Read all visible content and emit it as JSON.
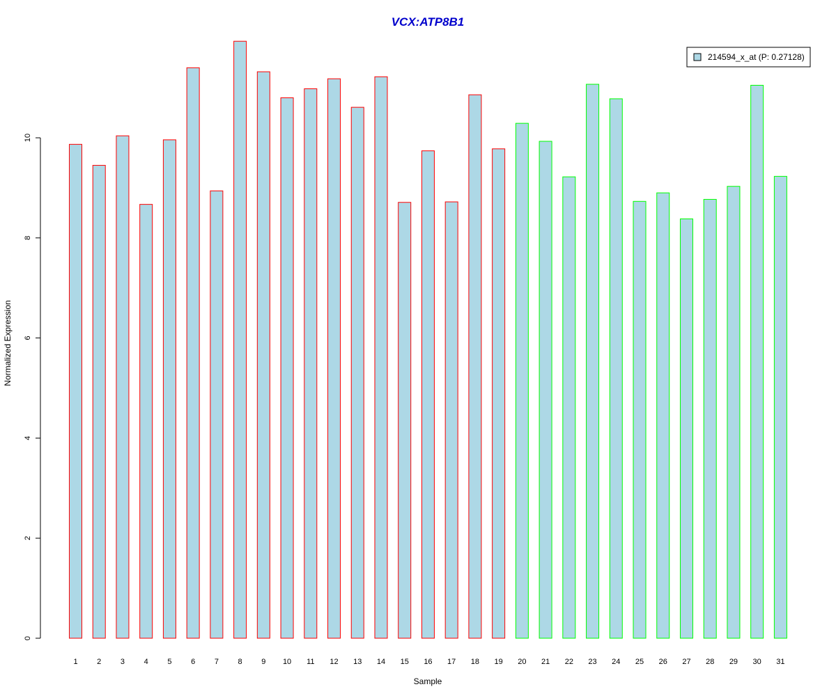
{
  "chart_data": {
    "type": "bar",
    "title": "VCX:ATP8B1",
    "xlabel": "Sample",
    "ylabel": "Normalized Expression",
    "ylim": [
      0,
      12
    ],
    "yticks": [
      0,
      2,
      4,
      6,
      8,
      10
    ],
    "grid": false,
    "legend_position": "top-right",
    "categories": [
      "1",
      "2",
      "3",
      "4",
      "5",
      "6",
      "7",
      "8",
      "9",
      "10",
      "11",
      "12",
      "13",
      "14",
      "15",
      "16",
      "17",
      "18",
      "19",
      "20",
      "21",
      "22",
      "23",
      "24",
      "25",
      "26",
      "27",
      "28",
      "29",
      "30",
      "31"
    ],
    "series": [
      {
        "name": "214594_x_at (P: 0.27128)",
        "values": [
          9.87,
          9.45,
          10.04,
          8.67,
          9.96,
          11.4,
          8.94,
          11.93,
          11.32,
          10.8,
          10.98,
          11.18,
          10.61,
          11.22,
          8.71,
          9.74,
          8.72,
          10.86,
          9.78,
          10.29,
          9.93,
          9.22,
          11.07,
          10.78,
          8.73,
          8.9,
          8.38,
          8.77,
          9.03,
          11.05,
          9.23
        ],
        "groups": [
          "a",
          "a",
          "a",
          "a",
          "a",
          "a",
          "a",
          "a",
          "a",
          "a",
          "a",
          "a",
          "a",
          "a",
          "a",
          "a",
          "a",
          "a",
          "a",
          "b",
          "b",
          "b",
          "b",
          "b",
          "b",
          "b",
          "b",
          "b",
          "b",
          "b",
          "b"
        ]
      }
    ],
    "colors": {
      "fill": "#ADD8E6",
      "border_a": "#FF0000",
      "border_b": "#00FF00",
      "title": "#0000CC"
    }
  }
}
